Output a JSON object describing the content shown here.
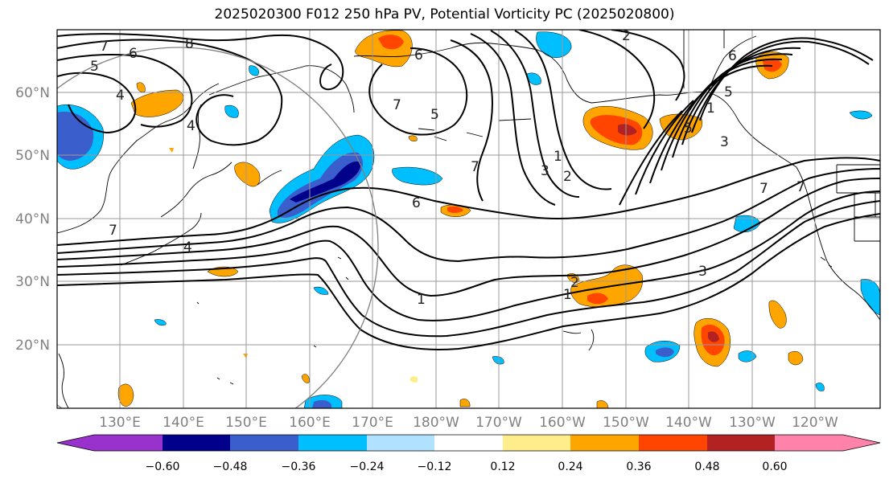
{
  "title": "2025020300 F012 250 hPa PV, Potential Vorticity PC (2025020800)",
  "lat_labels": [
    "60°N",
    "50°N",
    "40°N",
    "30°N",
    "20°N"
  ],
  "lon_labels": [
    "130°E",
    "140°E",
    "150°E",
    "160°E",
    "170°E",
    "180°W",
    "170°W",
    "160°W",
    "150°W",
    "140°W",
    "130°W",
    "120°W"
  ],
  "colorbar": {
    "ticks": [
      "−0.60",
      "−0.48",
      "−0.36",
      "−0.24",
      "−0.12",
      "0.12",
      "0.24",
      "0.36",
      "0.48",
      "0.60"
    ],
    "colors": [
      "#9932cc",
      "#00008b",
      "#3a5fcd",
      "#00bfff",
      "#b0e2ff",
      "#ffffff",
      "#ffec8b",
      "#ffa500",
      "#ff4500",
      "#b22222",
      "#ff82ab"
    ]
  },
  "contour_labels": [
    "7",
    "8",
    "6",
    "5",
    "4",
    "6",
    "7",
    "5",
    "4",
    "4",
    "7",
    "1",
    "2",
    "3",
    "6",
    "7",
    "2",
    "1",
    "1",
    "2",
    "3",
    "5",
    "6",
    "7",
    "1",
    "3",
    "5",
    "7"
  ]
}
